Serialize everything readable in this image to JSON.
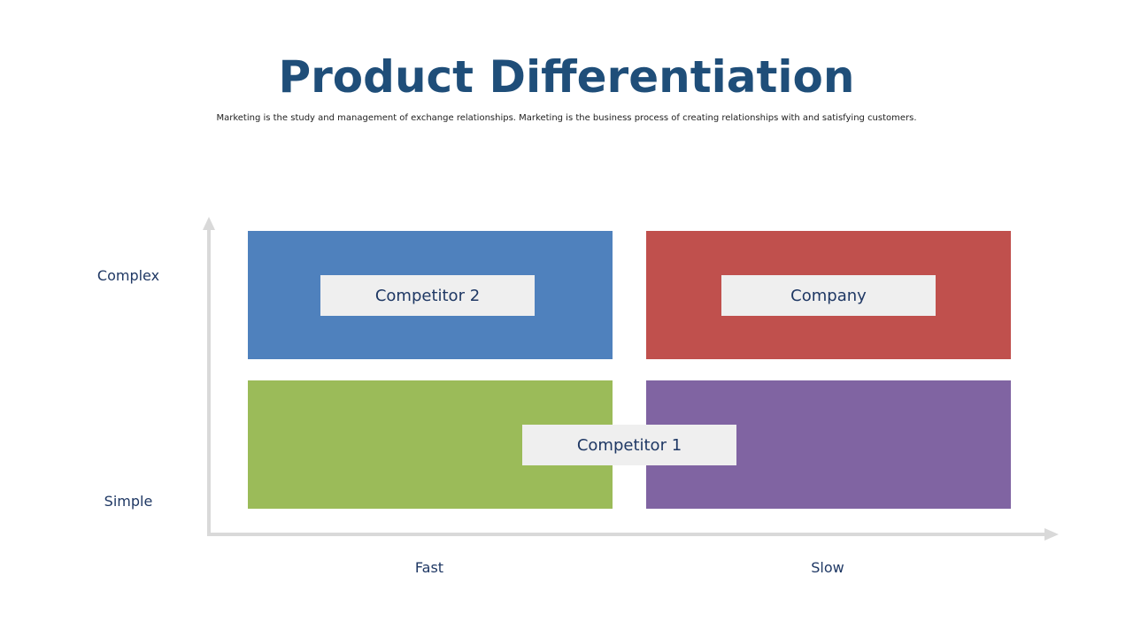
{
  "header": {
    "title": "Product Differentiation",
    "subtitle": "Marketing is the study and management of exchange relationships. Marketing is the  business process of creating relationships with and satisfying customers."
  },
  "axes": {
    "y_top": "Complex",
    "y_bottom": "Simple",
    "x_left": "Fast",
    "x_right": "Slow"
  },
  "labels": {
    "top_left": "Competitor 2",
    "top_right": "Company",
    "center_bottom": "Competitor 1"
  }
}
